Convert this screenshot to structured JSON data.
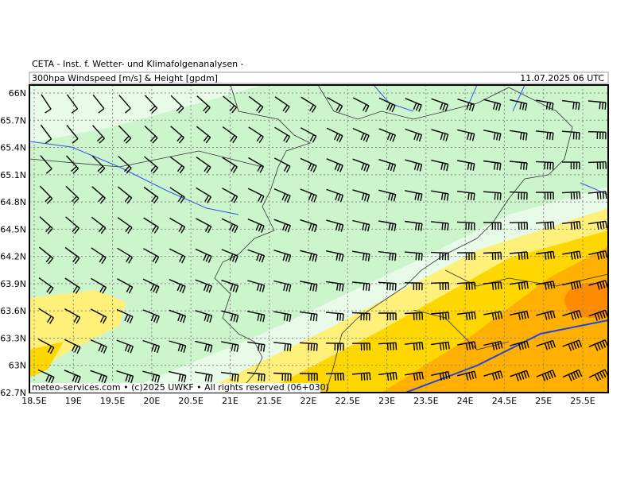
{
  "header": {
    "title": "CETA - Inst. f. Wetter- und Klimafolgenanalysen -",
    "subtitle": "300hpa Windspeed [m/s] & Height [gpdm]",
    "datetime": "11.07.2025 06 UTC"
  },
  "map": {
    "lat_labels": [
      "66N",
      "65.7N",
      "65.4N",
      "65.1N",
      "64.8N",
      "64.5N",
      "64.2N",
      "63.9N",
      "63.6N",
      "63.3N",
      "63N",
      "62.7N"
    ],
    "lon_labels": [
      "18.5E",
      "19E",
      "19.5E",
      "20E",
      "20.5E",
      "21E",
      "21.5E",
      "22E",
      "22.5E",
      "23E",
      "23.5E",
      "24E",
      "24.5E",
      "25E",
      "25.5E"
    ],
    "footer": "meteo-services.com • (c)2025 UWKF • All rights reserved (06+030)"
  }
}
